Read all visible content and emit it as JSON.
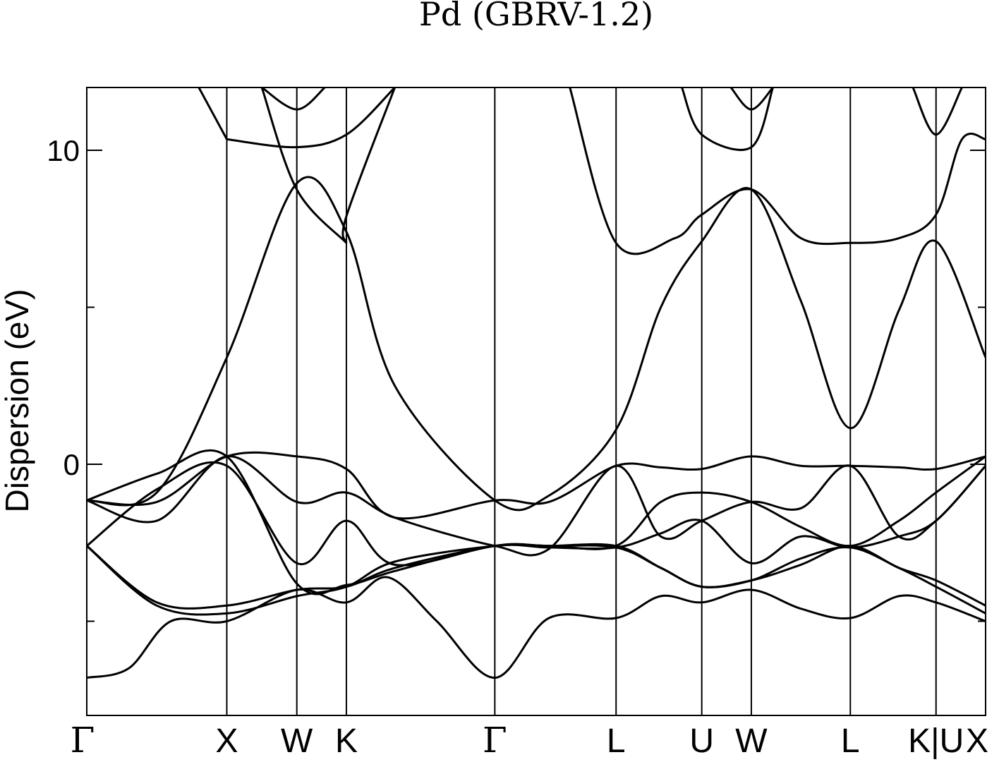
{
  "chart_data": {
    "type": "line",
    "title": "Pd (GBRV-1.2)",
    "xlabel": "",
    "ylabel": "Dispersion (eV)",
    "ylim": [
      -8.0,
      12.0
    ],
    "yticks": [
      {
        "value": 10,
        "label": "10"
      },
      {
        "value": 0,
        "label": "0"
      }
    ],
    "yminor_ticks": [
      5,
      -5
    ],
    "grid": false,
    "legend": "none",
    "line_color": "#000000",
    "kpath": [
      {
        "label": "Γ",
        "x": 0.0
      },
      {
        "label": "X",
        "x": 1.0
      },
      {
        "label": "W",
        "x": 1.5
      },
      {
        "label": "K",
        "x": 1.854
      },
      {
        "label": "Γ",
        "x": 2.914
      },
      {
        "label": "L",
        "x": 3.78
      },
      {
        "label": "U",
        "x": 4.392
      },
      {
        "label": "W",
        "x": 4.746
      },
      {
        "label": "L",
        "x": 5.453
      },
      {
        "label": "K|U",
        "x": 6.065
      },
      {
        "label": "X",
        "x": 6.419
      }
    ],
    "xlim": [
      0.0,
      6.419
    ],
    "series": [
      {
        "points": [
          [
            0,
            -6.8
          ],
          [
            0.3,
            -6.5
          ],
          [
            0.6,
            -5.0
          ],
          [
            1.0,
            -5.0
          ],
          [
            1.5,
            -4.0
          ],
          [
            1.854,
            -4.4
          ],
          [
            2.15,
            -3.6
          ],
          [
            2.5,
            -5.0
          ],
          [
            2.914,
            -6.8
          ],
          [
            3.3,
            -4.9
          ],
          [
            3.78,
            -4.9
          ],
          [
            4.1,
            -4.2
          ],
          [
            4.392,
            -4.4
          ],
          [
            4.746,
            -4.0
          ],
          [
            5.1,
            -4.6
          ],
          [
            5.453,
            -4.9
          ],
          [
            5.8,
            -4.2
          ],
          [
            6.065,
            -4.4
          ],
          [
            6.419,
            -5.0
          ]
        ]
      },
      {
        "points": [
          [
            0,
            -2.6
          ],
          [
            0.5,
            -4.5
          ],
          [
            1.0,
            -4.75
          ],
          [
            1.5,
            -4.2
          ],
          [
            1.854,
            -3.9
          ],
          [
            2.2,
            -3.1
          ],
          [
            2.914,
            -2.6
          ],
          [
            3.3,
            -2.6
          ],
          [
            3.78,
            -2.65
          ],
          [
            4.1,
            -3.3
          ],
          [
            4.392,
            -3.9
          ],
          [
            4.746,
            -3.7
          ],
          [
            5.1,
            -3.0
          ],
          [
            5.453,
            -2.65
          ],
          [
            5.8,
            -3.3
          ],
          [
            6.065,
            -3.9
          ],
          [
            6.419,
            -4.75
          ]
        ]
      },
      {
        "points": [
          [
            0,
            -2.6
          ],
          [
            0.5,
            -4.4
          ],
          [
            1.0,
            -4.5
          ],
          [
            1.5,
            -4.0
          ],
          [
            1.854,
            -3.9
          ],
          [
            2.2,
            -3.3
          ],
          [
            2.914,
            -2.6
          ],
          [
            3.3,
            -2.6
          ],
          [
            3.78,
            -2.6
          ],
          [
            4.1,
            -3.3
          ],
          [
            4.392,
            -3.9
          ],
          [
            4.746,
            -3.7
          ],
          [
            5.1,
            -3.2
          ],
          [
            5.453,
            -2.6
          ],
          [
            5.8,
            -3.3
          ],
          [
            6.065,
            -3.7
          ],
          [
            6.419,
            -4.5
          ]
        ]
      },
      {
        "points": [
          [
            0,
            -2.6
          ],
          [
            0.5,
            -0.8
          ],
          [
            1.0,
            -0.05
          ],
          [
            1.5,
            -3.15
          ],
          [
            1.854,
            -1.8
          ],
          [
            2.2,
            -3.2
          ],
          [
            2.914,
            -2.6
          ],
          [
            3.3,
            -2.65
          ],
          [
            3.78,
            -2.65
          ],
          [
            4.1,
            -2.2
          ],
          [
            4.392,
            -1.8
          ],
          [
            4.746,
            -3.15
          ],
          [
            5.1,
            -2.3
          ],
          [
            5.453,
            -2.65
          ],
          [
            5.8,
            -2.3
          ],
          [
            6.065,
            -1.8
          ],
          [
            6.419,
            -0.05
          ]
        ]
      },
      {
        "points": [
          [
            0,
            -1.15
          ],
          [
            0.5,
            -0.3
          ],
          [
            1.0,
            0.25
          ],
          [
            1.5,
            -3.8
          ],
          [
            1.854,
            -3.85
          ],
          [
            2.2,
            -3.4
          ],
          [
            2.914,
            -2.6
          ],
          [
            3.3,
            -2.6
          ],
          [
            3.78,
            -2.6
          ],
          [
            4.1,
            -1.2
          ],
          [
            4.392,
            -0.9
          ],
          [
            4.746,
            -1.2
          ],
          [
            5.1,
            -2.0
          ],
          [
            5.453,
            -2.6
          ],
          [
            5.8,
            -1.8
          ],
          [
            6.065,
            -0.9
          ],
          [
            6.419,
            0.25
          ]
        ]
      },
      {
        "points": [
          [
            0,
            -1.15
          ],
          [
            0.5,
            -1.8
          ],
          [
            1.0,
            0.25
          ],
          [
            1.5,
            -1.2
          ],
          [
            1.854,
            -0.9
          ],
          [
            2.2,
            -1.7
          ],
          [
            2.914,
            -2.6
          ],
          [
            3.3,
            -2.7
          ],
          [
            3.78,
            -0.05
          ],
          [
            4.1,
            -2.3
          ],
          [
            4.392,
            -1.8
          ],
          [
            4.746,
            -1.2
          ],
          [
            5.1,
            -1.4
          ],
          [
            5.453,
            -0.05
          ],
          [
            5.8,
            -2.3
          ],
          [
            6.065,
            -1.8
          ],
          [
            6.419,
            -0.05
          ]
        ]
      },
      {
        "points": [
          [
            0,
            -1.15
          ],
          [
            0.5,
            -1.2
          ],
          [
            1.0,
            0.25
          ],
          [
            1.5,
            0.25
          ],
          [
            1.854,
            -0.15
          ],
          [
            2.2,
            -1.7
          ],
          [
            2.914,
            -1.15
          ],
          [
            3.3,
            -1.2
          ],
          [
            3.78,
            -0.05
          ],
          [
            4.1,
            -0.1
          ],
          [
            4.392,
            -0.15
          ],
          [
            4.746,
            0.25
          ],
          [
            5.1,
            -0.05
          ],
          [
            5.453,
            -0.05
          ],
          [
            5.8,
            -0.1
          ],
          [
            6.065,
            -0.15
          ],
          [
            6.419,
            0.25
          ]
        ]
      },
      {
        "points": [
          [
            0,
            -1.15
          ],
          [
            0.5,
            -0.9
          ],
          [
            1.0,
            3.4
          ],
          [
            1.5,
            8.95
          ],
          [
            1.854,
            7.4
          ],
          [
            2.2,
            2.5
          ],
          [
            2.914,
            -1.15
          ],
          [
            3.3,
            -1.0
          ],
          [
            3.78,
            1.1
          ],
          [
            4.1,
            5.0
          ],
          [
            4.392,
            7.1
          ],
          [
            4.746,
            8.75
          ],
          [
            5.1,
            5.2
          ],
          [
            5.453,
            1.15
          ],
          [
            5.8,
            4.9
          ],
          [
            6.065,
            7.1
          ],
          [
            6.419,
            3.4
          ]
        ]
      },
      {
        "points": [
          [
            1.0,
            10.35
          ],
          [
            1.5,
            10.1
          ],
          [
            1.854,
            10.5
          ],
          [
            2.2,
            12.0
          ]
        ]
      },
      {
        "points": [
          [
            1.0,
            10.35
          ],
          [
            0.8,
            12.0
          ]
        ]
      },
      {
        "points": [
          [
            1.25,
            12.0
          ],
          [
            1.5,
            8.75
          ],
          [
            1.854,
            7.05
          ]
        ]
      },
      {
        "points": [
          [
            1.25,
            12.0
          ],
          [
            1.5,
            11.3
          ],
          [
            1.7,
            12.0
          ]
        ]
      },
      {
        "points": [
          [
            1.854,
            7.05
          ],
          [
            1.854,
            7.9
          ],
          [
            2.2,
            12.0
          ]
        ]
      },
      {
        "points": [
          [
            3.45,
            12.0
          ],
          [
            3.78,
            7.05
          ],
          [
            4.2,
            7.2
          ],
          [
            4.392,
            7.95
          ],
          [
            4.746,
            8.75
          ],
          [
            5.1,
            7.2
          ],
          [
            5.453,
            7.05
          ],
          [
            5.8,
            7.2
          ],
          [
            6.065,
            7.95
          ],
          [
            6.25,
            10.35
          ],
          [
            6.419,
            10.35
          ]
        ]
      },
      {
        "points": [
          [
            4.25,
            12.0
          ],
          [
            4.392,
            10.5
          ],
          [
            4.746,
            10.1
          ],
          [
            4.9,
            12.0
          ]
        ]
      },
      {
        "points": [
          [
            4.6,
            12.0
          ],
          [
            4.746,
            11.3
          ],
          [
            4.9,
            12.0
          ]
        ]
      },
      {
        "points": [
          [
            5.9,
            12.0
          ],
          [
            6.065,
            10.5
          ],
          [
            6.25,
            12.0
          ]
        ]
      }
    ]
  }
}
